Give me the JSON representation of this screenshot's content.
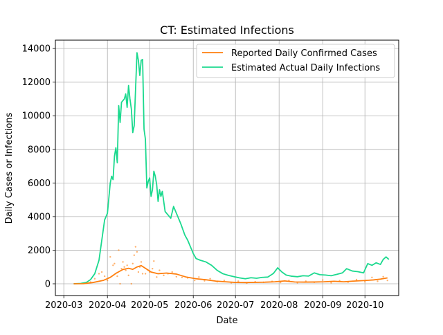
{
  "chart_data": {
    "type": "line",
    "title": "CT: Estimated Infections",
    "xlabel": "Date",
    "ylabel": "Daily Cases or Infections",
    "x_ticks": [
      "2020-03",
      "2020-04",
      "2020-05",
      "2020-06",
      "2020-07",
      "2020-08",
      "2020-09",
      "2020-10"
    ],
    "y_ticks": [
      0,
      2000,
      4000,
      6000,
      8000,
      10000,
      12000,
      14000
    ],
    "xlim": [
      "2020-02-24",
      "2020-10-25"
    ],
    "ylim": [
      -700,
      14500
    ],
    "grid": true,
    "legend_position": "upper-right",
    "series": [
      {
        "name": "Reported Daily Confirmed Cases",
        "color": "#ff7f0e",
        "style": "line",
        "points": [
          [
            "2020-03-08",
            0
          ],
          [
            "2020-03-15",
            5
          ],
          [
            "2020-03-22",
            80
          ],
          [
            "2020-03-29",
            200
          ],
          [
            "2020-04-03",
            380
          ],
          [
            "2020-04-07",
            620
          ],
          [
            "2020-04-12",
            850
          ],
          [
            "2020-04-16",
            920
          ],
          [
            "2020-04-19",
            860
          ],
          [
            "2020-04-22",
            1000
          ],
          [
            "2020-04-25",
            1080
          ],
          [
            "2020-04-28",
            920
          ],
          [
            "2020-05-02",
            700
          ],
          [
            "2020-05-07",
            600
          ],
          [
            "2020-05-13",
            640
          ],
          [
            "2020-05-20",
            580
          ],
          [
            "2020-05-27",
            400
          ],
          [
            "2020-06-03",
            300
          ],
          [
            "2020-06-10",
            240
          ],
          [
            "2020-06-17",
            160
          ],
          [
            "2020-06-24",
            120
          ],
          [
            "2020-07-01",
            80
          ],
          [
            "2020-07-08",
            75
          ],
          [
            "2020-07-15",
            85
          ],
          [
            "2020-07-22",
            95
          ],
          [
            "2020-07-29",
            120
          ],
          [
            "2020-08-05",
            170
          ],
          [
            "2020-08-12",
            110
          ],
          [
            "2020-08-19",
            100
          ],
          [
            "2020-08-26",
            105
          ],
          [
            "2020-09-02",
            120
          ],
          [
            "2020-09-09",
            150
          ],
          [
            "2020-09-16",
            120
          ],
          [
            "2020-09-23",
            160
          ],
          [
            "2020-09-30",
            190
          ],
          [
            "2020-10-07",
            230
          ],
          [
            "2020-10-12",
            280
          ],
          [
            "2020-10-17",
            350
          ]
        ]
      },
      {
        "name": "Estimated Actual Daily Infections",
        "color": "#1bd98e",
        "style": "line",
        "points": [
          [
            "2020-03-08",
            0
          ],
          [
            "2020-03-13",
            20
          ],
          [
            "2020-03-17",
            80
          ],
          [
            "2020-03-20",
            250
          ],
          [
            "2020-03-23",
            600
          ],
          [
            "2020-03-26",
            1400
          ],
          [
            "2020-03-28",
            2600
          ],
          [
            "2020-03-30",
            3800
          ],
          [
            "2020-04-01",
            4200
          ],
          [
            "2020-04-03",
            6000
          ],
          [
            "2020-04-04",
            6400
          ],
          [
            "2020-04-05",
            6200
          ],
          [
            "2020-04-06",
            7600
          ],
          [
            "2020-04-07",
            8100
          ],
          [
            "2020-04-08",
            7200
          ],
          [
            "2020-04-09",
            10600
          ],
          [
            "2020-04-10",
            9600
          ],
          [
            "2020-04-11",
            10800
          ],
          [
            "2020-04-13",
            11000
          ],
          [
            "2020-04-14",
            11300
          ],
          [
            "2020-04-15",
            10500
          ],
          [
            "2020-04-16",
            11800
          ],
          [
            "2020-04-17",
            11000
          ],
          [
            "2020-04-18",
            10400
          ],
          [
            "2020-04-19",
            9000
          ],
          [
            "2020-04-20",
            9400
          ],
          [
            "2020-04-21",
            11600
          ],
          [
            "2020-04-22",
            13750
          ],
          [
            "2020-04-23",
            13300
          ],
          [
            "2020-04-24",
            12400
          ],
          [
            "2020-04-25",
            13300
          ],
          [
            "2020-04-26",
            13350
          ],
          [
            "2020-04-27",
            9200
          ],
          [
            "2020-04-28",
            8600
          ],
          [
            "2020-04-29",
            5700
          ],
          [
            "2020-04-30",
            6100
          ],
          [
            "2020-05-01",
            6300
          ],
          [
            "2020-05-02",
            5200
          ],
          [
            "2020-05-03",
            5600
          ],
          [
            "2020-05-04",
            6700
          ],
          [
            "2020-05-05",
            6400
          ],
          [
            "2020-05-06",
            5900
          ],
          [
            "2020-05-07",
            4900
          ],
          [
            "2020-05-08",
            5600
          ],
          [
            "2020-05-09",
            5200
          ],
          [
            "2020-05-10",
            5500
          ],
          [
            "2020-05-12",
            4300
          ],
          [
            "2020-05-14",
            4100
          ],
          [
            "2020-05-16",
            3900
          ],
          [
            "2020-05-18",
            4600
          ],
          [
            "2020-05-20",
            4200
          ],
          [
            "2020-05-23",
            3600
          ],
          [
            "2020-05-26",
            2900
          ],
          [
            "2020-05-28",
            2600
          ],
          [
            "2020-05-30",
            2200
          ],
          [
            "2020-06-01",
            1800
          ],
          [
            "2020-06-03",
            1500
          ],
          [
            "2020-06-06",
            1400
          ],
          [
            "2020-06-10",
            1300
          ],
          [
            "2020-06-14",
            1100
          ],
          [
            "2020-06-18",
            800
          ],
          [
            "2020-06-22",
            600
          ],
          [
            "2020-06-26",
            500
          ],
          [
            "2020-06-30",
            420
          ],
          [
            "2020-07-04",
            350
          ],
          [
            "2020-07-08",
            300
          ],
          [
            "2020-07-12",
            360
          ],
          [
            "2020-07-16",
            330
          ],
          [
            "2020-07-20",
            380
          ],
          [
            "2020-07-24",
            400
          ],
          [
            "2020-07-28",
            620
          ],
          [
            "2020-07-31",
            950
          ],
          [
            "2020-08-03",
            700
          ],
          [
            "2020-08-06",
            520
          ],
          [
            "2020-08-10",
            450
          ],
          [
            "2020-08-14",
            420
          ],
          [
            "2020-08-18",
            480
          ],
          [
            "2020-08-22",
            460
          ],
          [
            "2020-08-26",
            650
          ],
          [
            "2020-08-30",
            540
          ],
          [
            "2020-09-03",
            520
          ],
          [
            "2020-09-07",
            480
          ],
          [
            "2020-09-11",
            560
          ],
          [
            "2020-09-15",
            650
          ],
          [
            "2020-09-18",
            900
          ],
          [
            "2020-09-22",
            760
          ],
          [
            "2020-09-26",
            720
          ],
          [
            "2020-09-30",
            650
          ],
          [
            "2020-10-03",
            1200
          ],
          [
            "2020-10-06",
            1100
          ],
          [
            "2020-10-09",
            1250
          ],
          [
            "2020-10-12",
            1150
          ],
          [
            "2020-10-14",
            1450
          ],
          [
            "2020-10-16",
            1600
          ],
          [
            "2020-10-18",
            1450
          ]
        ]
      },
      {
        "name": "",
        "color": "#ff7f0e",
        "style": "scatter",
        "points": [
          [
            "2020-03-20",
            100
          ],
          [
            "2020-03-23",
            300
          ],
          [
            "2020-03-26",
            600
          ],
          [
            "2020-03-28",
            700
          ],
          [
            "2020-03-30",
            450
          ],
          [
            "2020-04-01",
            200
          ],
          [
            "2020-04-02",
            350
          ],
          [
            "2020-04-03",
            1600
          ],
          [
            "2020-04-05",
            1100
          ],
          [
            "2020-04-06",
            1200
          ],
          [
            "2020-04-08",
            450
          ],
          [
            "2020-04-09",
            2000
          ],
          [
            "2020-04-10",
            0
          ],
          [
            "2020-04-11",
            900
          ],
          [
            "2020-04-12",
            1300
          ],
          [
            "2020-04-13",
            1000
          ],
          [
            "2020-04-14",
            800
          ],
          [
            "2020-04-15",
            1100
          ],
          [
            "2020-04-16",
            500
          ],
          [
            "2020-04-18",
            0
          ],
          [
            "2020-04-19",
            1200
          ],
          [
            "2020-04-20",
            1700
          ],
          [
            "2020-04-21",
            2200
          ],
          [
            "2020-04-22",
            1900
          ],
          [
            "2020-04-23",
            700
          ],
          [
            "2020-04-24",
            1000
          ],
          [
            "2020-04-25",
            1300
          ],
          [
            "2020-04-26",
            600
          ],
          [
            "2020-04-28",
            600
          ],
          [
            "2020-04-30",
            800
          ],
          [
            "2020-05-01",
            700
          ],
          [
            "2020-05-03",
            900
          ],
          [
            "2020-05-04",
            1350
          ],
          [
            "2020-05-06",
            400
          ],
          [
            "2020-05-08",
            800
          ],
          [
            "2020-05-11",
            500
          ],
          [
            "2020-05-14",
            600
          ],
          [
            "2020-05-17",
            700
          ],
          [
            "2020-05-20",
            420
          ],
          [
            "2020-05-24",
            380
          ],
          [
            "2020-05-28",
            350
          ],
          [
            "2020-06-02",
            200
          ],
          [
            "2020-06-05",
            400
          ],
          [
            "2020-06-09",
            180
          ],
          [
            "2020-06-13",
            300
          ],
          [
            "2020-06-18",
            120
          ],
          [
            "2020-06-23",
            200
          ],
          [
            "2020-06-28",
            60
          ],
          [
            "2020-07-03",
            150
          ],
          [
            "2020-07-09",
            40
          ],
          [
            "2020-07-15",
            120
          ],
          [
            "2020-07-21",
            90
          ],
          [
            "2020-07-27",
            140
          ],
          [
            "2020-08-02",
            80
          ],
          [
            "2020-08-08",
            200
          ],
          [
            "2020-08-14",
            60
          ],
          [
            "2020-08-20",
            150
          ],
          [
            "2020-08-26",
            90
          ],
          [
            "2020-09-01",
            220
          ],
          [
            "2020-09-07",
            60
          ],
          [
            "2020-09-13",
            180
          ],
          [
            "2020-09-19",
            100
          ],
          [
            "2020-09-25",
            250
          ],
          [
            "2020-10-01",
            120
          ],
          [
            "2020-10-06",
            380
          ],
          [
            "2020-10-10",
            150
          ],
          [
            "2020-10-14",
            420
          ],
          [
            "2020-10-17",
            200
          ]
        ]
      }
    ]
  }
}
